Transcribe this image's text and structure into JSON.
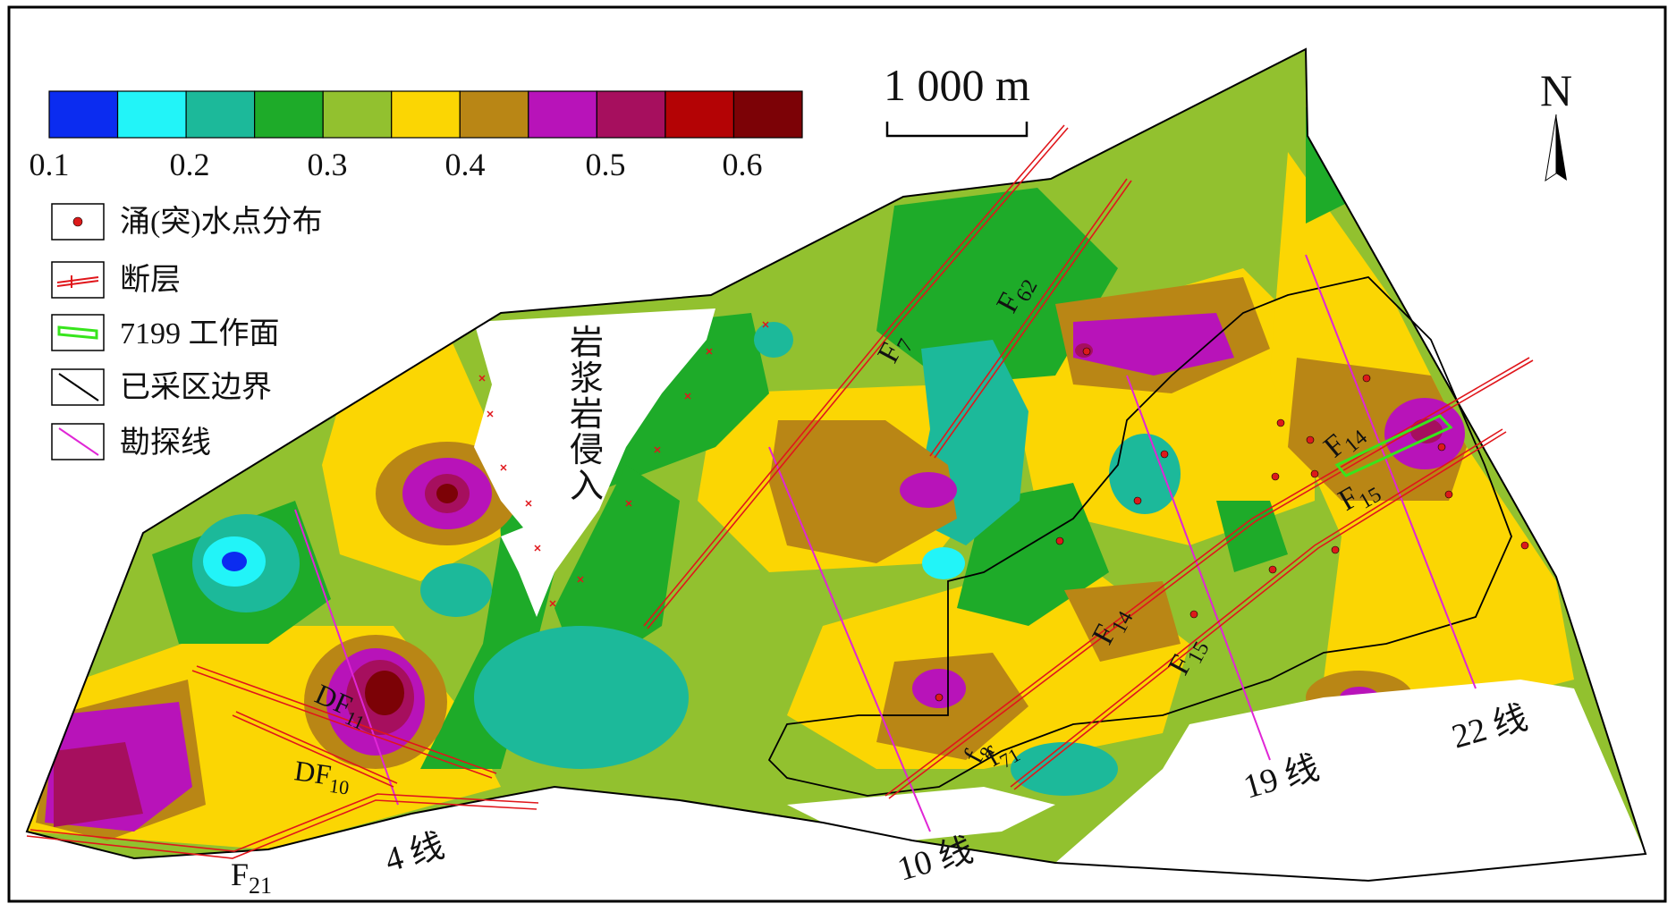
{
  "colorbar": {
    "colors": [
      "#0b2cf0",
      "#22f4f8",
      "#1cb99a",
      "#1eab29",
      "#92c12f",
      "#fbd603",
      "#b98615",
      "#b813b9",
      "#a60f5e",
      "#b40305",
      "#7c0206"
    ],
    "ticks": [
      "0.1",
      "0.2",
      "0.3",
      "0.4",
      "0.5",
      "0.6"
    ]
  },
  "legend": {
    "items": [
      {
        "icon": "water-point-icon",
        "label": "涌(突)水点分布"
      },
      {
        "icon": "fault-icon",
        "label": "断层"
      },
      {
        "icon": "working-face-icon",
        "label": "7199 工作面"
      },
      {
        "icon": "mined-boundary-icon",
        "label": "已采区边界"
      },
      {
        "icon": "exploration-line-icon",
        "label": "勘探线"
      }
    ]
  },
  "scale_bar": {
    "label": "1 000 m"
  },
  "north_arrow": {
    "label": "N"
  },
  "intrusion": {
    "chars": [
      "岩",
      "浆",
      "岩",
      "侵",
      "入"
    ]
  },
  "faults": {
    "F7": {
      "main": "F",
      "sub": "7"
    },
    "F62": {
      "main": "F",
      "sub": "62"
    },
    "F14a": {
      "main": "F",
      "sub": "14"
    },
    "F15a": {
      "main": "F",
      "sub": "15"
    },
    "F14b": {
      "main": "F",
      "sub": "14"
    },
    "F15b": {
      "main": "F",
      "sub": "15"
    },
    "f8": {
      "main": "f",
      "sub": "8"
    },
    "f71": {
      "main": "f",
      "sub": "71"
    },
    "DF11": {
      "main": "DF",
      "sub": "11"
    },
    "DF10": {
      "main": "DF",
      "sub": "10"
    },
    "F21": {
      "main": "F",
      "sub": "21"
    }
  },
  "lines": {
    "line4": "4 线",
    "line10": "10 线",
    "line19": "19 线",
    "line22": "22 线"
  },
  "colors": {
    "fault": "#e0161b",
    "exploration_line": "#e026d6",
    "working_face": "#37e51c",
    "water_point": "#dc1a1a",
    "boundary": "#000000"
  }
}
